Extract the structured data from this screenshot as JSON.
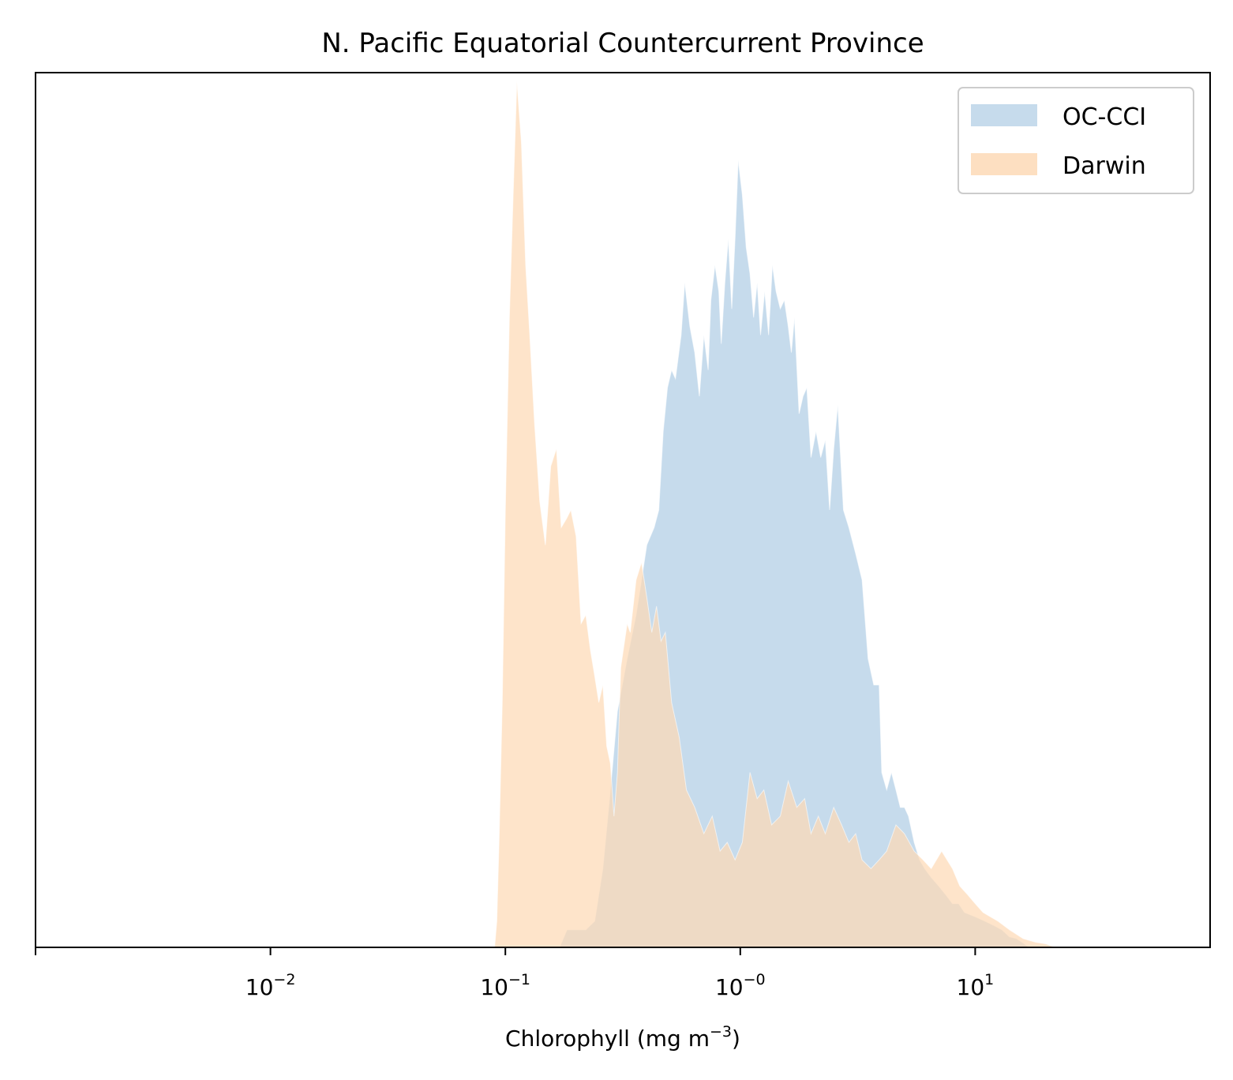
{
  "chart_data": {
    "type": "area",
    "title": "N. Pacific Equatorial Countercurrent Province",
    "xlabel_main": "Chlorophyll  (mg m",
    "xlabel_exp": "−3",
    "xlabel_close": ")",
    "xscale": "log",
    "xlim": [
      0.001,
      100
    ],
    "ylim": [
      0,
      1
    ],
    "yaxis_ticks_shown": false,
    "grid": false,
    "legend_position": "top-right",
    "x_ticks": [
      {
        "value": 0.01,
        "base": "10",
        "exp": "−2"
      },
      {
        "value": 0.1,
        "base": "10",
        "exp": "−1"
      },
      {
        "value": 1,
        "base": "10",
        "exp": "−0"
      },
      {
        "value": 10,
        "base": "10",
        "exp": "1"
      }
    ],
    "series": [
      {
        "name": "OC-CCI",
        "color": "#c6dbec",
        "points": [
          [
            0.17,
            0.0
          ],
          [
            0.183,
            0.02
          ],
          [
            0.22,
            0.02
          ],
          [
            0.24,
            0.03
          ],
          [
            0.26,
            0.09
          ],
          [
            0.28,
            0.18
          ],
          [
            0.3,
            0.27
          ],
          [
            0.33,
            0.33
          ],
          [
            0.36,
            0.38
          ],
          [
            0.38,
            0.42
          ],
          [
            0.4,
            0.46
          ],
          [
            0.43,
            0.48
          ],
          [
            0.45,
            0.5
          ],
          [
            0.47,
            0.59
          ],
          [
            0.49,
            0.64
          ],
          [
            0.51,
            0.66
          ],
          [
            0.53,
            0.65
          ],
          [
            0.56,
            0.7
          ],
          [
            0.58,
            0.76
          ],
          [
            0.61,
            0.71
          ],
          [
            0.64,
            0.68
          ],
          [
            0.67,
            0.63
          ],
          [
            0.7,
            0.7
          ],
          [
            0.73,
            0.66
          ],
          [
            0.75,
            0.74
          ],
          [
            0.78,
            0.78
          ],
          [
            0.81,
            0.75
          ],
          [
            0.83,
            0.69
          ],
          [
            0.86,
            0.76
          ],
          [
            0.89,
            0.81
          ],
          [
            0.92,
            0.73
          ],
          [
            0.95,
            0.81
          ],
          [
            0.98,
            0.9
          ],
          [
            1.02,
            0.86
          ],
          [
            1.06,
            0.8
          ],
          [
            1.1,
            0.77
          ],
          [
            1.14,
            0.72
          ],
          [
            1.18,
            0.76
          ],
          [
            1.22,
            0.7
          ],
          [
            1.27,
            0.75
          ],
          [
            1.32,
            0.7
          ],
          [
            1.37,
            0.78
          ],
          [
            1.42,
            0.75
          ],
          [
            1.48,
            0.73
          ],
          [
            1.54,
            0.74
          ],
          [
            1.6,
            0.71
          ],
          [
            1.65,
            0.68
          ],
          [
            1.7,
            0.72
          ],
          [
            1.78,
            0.61
          ],
          [
            1.85,
            0.63
          ],
          [
            1.92,
            0.64
          ],
          [
            2.0,
            0.56
          ],
          [
            2.1,
            0.59
          ],
          [
            2.2,
            0.56
          ],
          [
            2.3,
            0.58
          ],
          [
            2.4,
            0.5
          ],
          [
            2.5,
            0.57
          ],
          [
            2.6,
            0.62
          ],
          [
            2.75,
            0.5
          ],
          [
            2.9,
            0.48
          ],
          [
            3.1,
            0.45
          ],
          [
            3.3,
            0.42
          ],
          [
            3.5,
            0.33
          ],
          [
            3.7,
            0.3
          ],
          [
            3.9,
            0.3
          ],
          [
            4.0,
            0.2
          ],
          [
            4.2,
            0.18
          ],
          [
            4.4,
            0.2
          ],
          [
            4.6,
            0.18
          ],
          [
            4.8,
            0.16
          ],
          [
            5.0,
            0.16
          ],
          [
            5.2,
            0.15
          ],
          [
            5.5,
            0.12
          ],
          [
            5.8,
            0.1
          ],
          [
            6.1,
            0.09
          ],
          [
            6.5,
            0.08
          ],
          [
            7.0,
            0.07
          ],
          [
            7.5,
            0.06
          ],
          [
            8.0,
            0.05
          ],
          [
            8.5,
            0.05
          ],
          [
            9.0,
            0.04
          ],
          [
            10.0,
            0.035
          ],
          [
            11.0,
            0.03
          ],
          [
            12.0,
            0.025
          ],
          [
            13.0,
            0.02
          ],
          [
            14.0,
            0.012
          ],
          [
            15.0,
            0.01
          ],
          [
            16.0,
            0.005
          ],
          [
            17.0,
            0.0
          ]
        ]
      },
      {
        "name": "Darwin",
        "color": "#fdd9b6",
        "points": [
          [
            0.09,
            0.0
          ],
          [
            0.092,
            0.03
          ],
          [
            0.094,
            0.12
          ],
          [
            0.097,
            0.28
          ],
          [
            0.1,
            0.5
          ],
          [
            0.104,
            0.72
          ],
          [
            0.108,
            0.86
          ],
          [
            0.112,
            0.99
          ],
          [
            0.117,
            0.92
          ],
          [
            0.122,
            0.78
          ],
          [
            0.127,
            0.7
          ],
          [
            0.133,
            0.6
          ],
          [
            0.14,
            0.51
          ],
          [
            0.148,
            0.46
          ],
          [
            0.156,
            0.55
          ],
          [
            0.165,
            0.57
          ],
          [
            0.173,
            0.48
          ],
          [
            0.182,
            0.49
          ],
          [
            0.19,
            0.5
          ],
          [
            0.2,
            0.47
          ],
          [
            0.21,
            0.37
          ],
          [
            0.22,
            0.38
          ],
          [
            0.23,
            0.34
          ],
          [
            0.24,
            0.31
          ],
          [
            0.25,
            0.28
          ],
          [
            0.26,
            0.3
          ],
          [
            0.27,
            0.23
          ],
          [
            0.28,
            0.21
          ],
          [
            0.29,
            0.15
          ],
          [
            0.3,
            0.2
          ],
          [
            0.31,
            0.32
          ],
          [
            0.33,
            0.37
          ],
          [
            0.34,
            0.36
          ],
          [
            0.36,
            0.42
          ],
          [
            0.38,
            0.44
          ],
          [
            0.4,
            0.4
          ],
          [
            0.42,
            0.36
          ],
          [
            0.44,
            0.39
          ],
          [
            0.46,
            0.35
          ],
          [
            0.48,
            0.36
          ],
          [
            0.51,
            0.28
          ],
          [
            0.55,
            0.24
          ],
          [
            0.59,
            0.18
          ],
          [
            0.64,
            0.16
          ],
          [
            0.7,
            0.13
          ],
          [
            0.76,
            0.15
          ],
          [
            0.82,
            0.11
          ],
          [
            0.88,
            0.12
          ],
          [
            0.95,
            0.1
          ],
          [
            1.02,
            0.12
          ],
          [
            1.1,
            0.2
          ],
          [
            1.18,
            0.17
          ],
          [
            1.26,
            0.18
          ],
          [
            1.36,
            0.14
          ],
          [
            1.48,
            0.15
          ],
          [
            1.6,
            0.19
          ],
          [
            1.74,
            0.16
          ],
          [
            1.88,
            0.17
          ],
          [
            2.0,
            0.13
          ],
          [
            2.15,
            0.15
          ],
          [
            2.3,
            0.13
          ],
          [
            2.5,
            0.16
          ],
          [
            2.7,
            0.14
          ],
          [
            2.9,
            0.12
          ],
          [
            3.1,
            0.13
          ],
          [
            3.3,
            0.1
          ],
          [
            3.6,
            0.09
          ],
          [
            3.9,
            0.1
          ],
          [
            4.2,
            0.11
          ],
          [
            4.6,
            0.14
          ],
          [
            5.0,
            0.13
          ],
          [
            5.5,
            0.11
          ],
          [
            6.0,
            0.1
          ],
          [
            6.5,
            0.09
          ],
          [
            7.2,
            0.11
          ],
          [
            8.0,
            0.09
          ],
          [
            8.6,
            0.07
          ],
          [
            9.3,
            0.06
          ],
          [
            10.0,
            0.05
          ],
          [
            10.8,
            0.04
          ],
          [
            11.6,
            0.035
          ],
          [
            12.5,
            0.03
          ],
          [
            14.0,
            0.02
          ],
          [
            16.0,
            0.01
          ],
          [
            18.0,
            0.006
          ],
          [
            20.0,
            0.004
          ],
          [
            22.0,
            0.0
          ]
        ]
      }
    ]
  }
}
